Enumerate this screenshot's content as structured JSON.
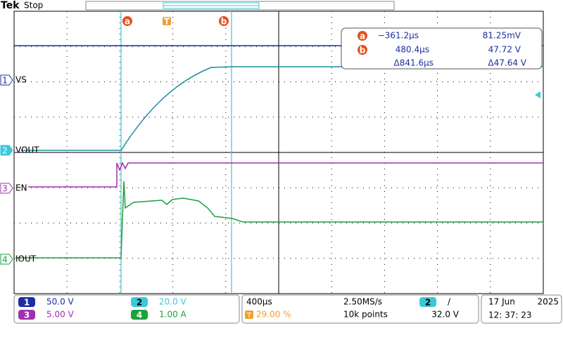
{
  "header": {
    "brand": "Tek",
    "state": "Stop"
  },
  "markers": {
    "a": "a",
    "trigger": "T",
    "b": "b"
  },
  "readout": {
    "rows": [
      {
        "tag": "a",
        "time": "−361.2µs",
        "value": "81.25mV"
      },
      {
        "tag": "b",
        "time": "480.4µs",
        "value": "47.72 V"
      },
      {
        "time": "Δ841.6µs",
        "value": "Δ47.64 V"
      }
    ]
  },
  "channels": [
    {
      "number": "1",
      "label": "VS"
    },
    {
      "number": "2",
      "label": "VOUT"
    },
    {
      "number": "3",
      "label": "EN"
    },
    {
      "number": "4",
      "label": "IOUT"
    }
  ],
  "scales": [
    {
      "number": "1",
      "value": "50.0 V"
    },
    {
      "number": "2",
      "value": "20.0 V"
    },
    {
      "number": "3",
      "value": "5.00 V"
    },
    {
      "number": "4",
      "value": "1.00 A"
    }
  ],
  "timebase": {
    "scale": "400µs",
    "sample_rate": "2.50MS/s",
    "trigger_tag": "T",
    "trigger_pos": "29.00 %",
    "record": "10k points",
    "trigger_channel": "2",
    "slope": "/",
    "level": "32.0 V"
  },
  "clock": {
    "date": "17 Jun",
    "year": "2025",
    "time": "12: 37: 23"
  }
}
